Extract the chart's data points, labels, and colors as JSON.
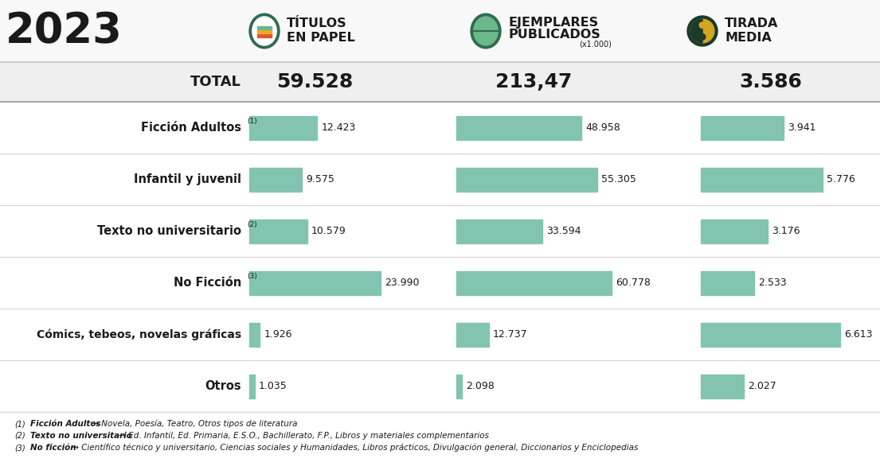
{
  "year": "2023",
  "total_label": "TOTAL",
  "total_col1": "59.528",
  "total_col2": "213,47",
  "total_col3": "3.586",
  "cat_labels": [
    "Ficción Adultos",
    "Infantil y juvenil",
    "Texto no universitario",
    "No Ficción",
    "Cómics, tebeos, novelas gráficas",
    "Otros"
  ],
  "superscripts": [
    "(1)",
    "",
    "(2)",
    "(3)",
    "",
    ""
  ],
  "col1_values": [
    12423,
    9575,
    10579,
    23990,
    1926,
    1035
  ],
  "col2_values": [
    48958,
    55305,
    33594,
    60778,
    12737,
    2098
  ],
  "col3_values": [
    3941,
    5776,
    3176,
    2533,
    6613,
    2027
  ],
  "col1_labels": [
    "12.423",
    "9.575",
    "10.579",
    "23.990",
    "1.926",
    "1.035"
  ],
  "col2_labels": [
    "48.958",
    "55.305",
    "33.594",
    "60.778",
    "12.737",
    "2.098"
  ],
  "col3_labels": [
    "3.941",
    "5.776",
    "3.176",
    "2.533",
    "6.613",
    "2.027"
  ],
  "bar_color": "#82c4b0",
  "bg_color": "#ffffff",
  "header_bg": "#f8f8f8",
  "total_bg": "#efefef",
  "col1_max": 23990,
  "col2_max": 60778,
  "col3_max": 6613,
  "header_line_color": "#cccccc",
  "row_sep_color": "#d5d5d5",
  "icon1_outer": "#2d6b55",
  "icon1_inner_colors": [
    "#e8523a",
    "#f5a623",
    "#7ec8a0"
  ],
  "icon2_outer": "#2d6b55",
  "icon3_outer": "#1a3a2a",
  "text_dark": "#1a1a1a",
  "fn1_bold": "Ficción Adultos",
  "fn1_rest": " → Novela, Poesía, Teatro, Otros tipos de literatura",
  "fn2_bold": "Texto no universitario",
  "fn2_rest": " → Ed. Infantil, Ed. Primaria, E.S.O., Bachillerato, F.P., Libros y materiales complementarios",
  "fn3_bold": "No ficción",
  "fn3_rest": " → Científico técnico y universitario, Ciencias sociales y Humanidades, Libros prácticos, Divulgación general, Diccionarios y Enciclopedias"
}
